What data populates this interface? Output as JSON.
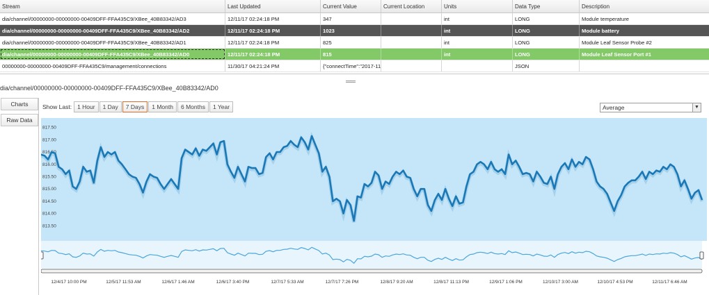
{
  "table": {
    "headers": [
      "Stream",
      "Last Updated",
      "Current Value",
      "Current Location",
      "Units",
      "Data Type",
      "Description"
    ],
    "rows": [
      {
        "stream": "dia/channel/00000000-00000000-00409DFF-FFA435C9/XBee_40B83342/AD3",
        "updated": "12/11/17 02:24:18 PM",
        "value": "347",
        "location": "",
        "units": "int",
        "type": "LONG",
        "description": "Module temperature"
      },
      {
        "stream": "dia/channel/00000000-00000000-00409DFF-FFA435C9/XBee_40B83342/AD2",
        "updated": "12/11/17 02:24:18 PM",
        "value": "1023",
        "location": "",
        "units": "int",
        "type": "LONG",
        "description": "Module battery"
      },
      {
        "stream": "dia/channel/00000000-00000000-00409DFF-FFA435C9/XBee_40B83342/AD1",
        "updated": "12/11/17 02:24:18 PM",
        "value": "825",
        "location": "",
        "units": "int",
        "type": "LONG",
        "description": "Module Leaf Sensor Probe #2"
      },
      {
        "stream": "dia/channel/00000000-00000000-00409DFF-FFA435C9/XBee_40B83342/AD0",
        "updated": "12/11/17 02:24:18 PM",
        "value": "815",
        "location": "",
        "units": "int",
        "type": "LONG",
        "description": "Module Leaf Sensor Port #1"
      },
      {
        "stream": "00000000-00000000-00409DFF-FFA435C9/management/connections",
        "updated": "11/30/17 04:21:24 PM",
        "value": "{\"connectTime\":\"2017-11",
        "location": "",
        "units": "",
        "type": "JSON",
        "description": ""
      }
    ]
  },
  "selected_path": "dia/channel/00000000-00000000-00409DFF-FFA435C9/XBee_40B83342/AD0",
  "side_tabs": {
    "charts": "Charts",
    "raw_data": "Raw Data"
  },
  "toolbar": {
    "show_last": "Show Last:",
    "ranges": [
      "1 Hour",
      "1 Day",
      "7 Days",
      "1 Month",
      "6 Months",
      "1 Year"
    ],
    "active_range": "7 Days",
    "aggregate": "Average"
  },
  "colors": {
    "line": "#1b78b6",
    "plot_bg": "#c5e6f9",
    "nav_bg": "#e8f5fc",
    "nav_line": "#4aa6dc",
    "selected_row": "#555555",
    "highlight_row": "#84c968",
    "active_button": "#e06a2a"
  },
  "chart_data": {
    "type": "line",
    "ylim": [
      813.0,
      817.8
    ],
    "y_ticks": [
      "817.50",
      "817.00",
      "816.50",
      "816.00",
      "815.50",
      "815.00",
      "814.50",
      "814.00",
      "813.50"
    ],
    "x_ticks": [
      "12/4/17 10:00 PM",
      "12/5/17 11:53 AM",
      "12/6/17 1:46 AM",
      "12/6/17 3:40 PM",
      "12/7/17 5:33 AM",
      "12/7/17 7:26 PM",
      "12/8/17 9:20 AM",
      "12/8/17 11:13 PM",
      "12/9/17 1:06 PM",
      "12/10/17 3:00 AM",
      "12/10/17 4:53 PM",
      "12/11/17 6:46 AM"
    ],
    "series": [
      {
        "values": [
          816.4,
          816.35,
          816.2,
          816.5,
          816.45,
          815.9,
          815.8,
          815.6,
          815.75,
          815.1,
          815.0,
          815.3,
          815.9,
          815.7,
          815.75,
          815.25,
          816.15,
          816.7,
          816.3,
          816.5,
          816.4,
          816.5,
          816.15,
          816.0,
          815.8,
          815.6,
          815.5,
          815.45,
          815.2,
          814.85,
          815.3,
          815.6,
          815.5,
          815.45,
          815.2,
          815.0,
          815.2,
          815.4,
          815.2,
          815.0,
          816.25,
          816.6,
          816.5,
          816.4,
          816.65,
          816.35,
          816.6,
          816.55,
          816.7,
          816.85,
          816.4,
          816.9,
          816.95,
          816.0,
          815.7,
          815.45,
          815.9,
          815.6,
          815.3,
          815.9,
          815.85,
          815.85,
          815.6,
          815.65,
          816.3,
          816.45,
          816.2,
          816.5,
          816.5,
          816.7,
          816.75,
          816.95,
          816.8,
          816.7,
          817.1,
          816.9,
          816.6,
          817.15,
          816.8,
          816.45,
          815.7,
          815.9,
          815.5,
          814.5,
          814.6,
          814.5,
          814.0,
          814.55,
          814.35,
          813.7,
          814.7,
          814.65,
          815.2,
          815.1,
          815.25,
          815.7,
          815.55,
          815.0,
          815.3,
          815.2,
          815.5,
          815.7,
          815.6,
          815.75,
          815.5,
          815.45,
          815.0,
          814.7,
          815.0,
          815.0,
          814.35,
          814.1,
          814.55,
          814.8,
          814.55,
          815.0,
          814.6,
          814.3,
          814.7,
          814.4,
          814.45,
          815.1,
          815.6,
          815.7,
          816.0,
          816.1,
          816.0,
          815.8,
          816.1,
          815.8,
          815.7,
          815.8,
          815.6,
          816.4,
          816.0,
          816.15,
          815.9,
          815.6,
          815.65,
          815.6,
          815.3,
          815.7,
          815.5,
          815.25,
          815.2,
          815.5,
          815.0,
          815.6,
          815.9,
          816.05,
          815.8,
          816.2,
          815.9,
          816.1,
          816.0,
          816.3,
          816.2,
          815.8,
          815.3,
          815.1,
          815.0,
          814.8,
          814.45,
          814.1,
          814.5,
          814.75,
          815.1,
          815.25,
          815.35,
          815.35,
          815.5,
          815.7,
          815.4,
          815.7,
          815.6,
          815.75,
          815.7,
          815.9,
          815.8,
          816.0,
          815.9,
          815.6,
          815.1,
          815.35,
          815.0,
          814.6,
          814.85,
          814.95,
          814.55
        ]
      }
    ]
  }
}
